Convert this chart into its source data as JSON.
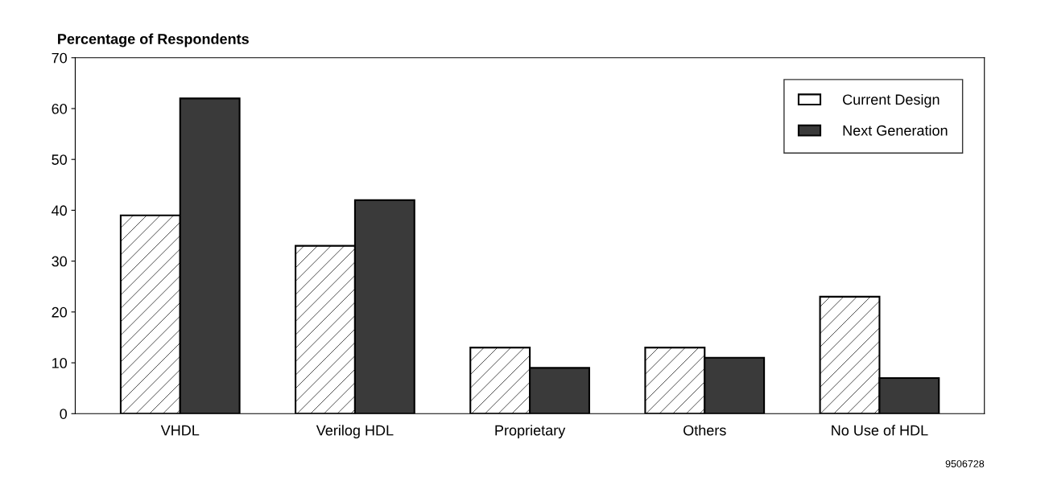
{
  "chart_data": {
    "type": "bar",
    "ylabel": "Percentage of Respondents",
    "categories": [
      "VHDL",
      "Verilog HDL",
      "Proprietary",
      "Others",
      "No Use of HDL"
    ],
    "series": [
      {
        "name": "Current Design",
        "color": "#ffffff",
        "values": [
          39,
          33,
          13,
          13,
          23
        ]
      },
      {
        "name": "Next Generation",
        "color": "#3a3a3a",
        "values": [
          62,
          42,
          9,
          11,
          7
        ]
      }
    ],
    "ylim": [
      0,
      70
    ],
    "yticks": [
      0,
      10,
      20,
      30,
      40,
      50,
      60,
      70
    ],
    "grid": false,
    "legend": "top right",
    "annotations": [
      "9506728"
    ]
  }
}
